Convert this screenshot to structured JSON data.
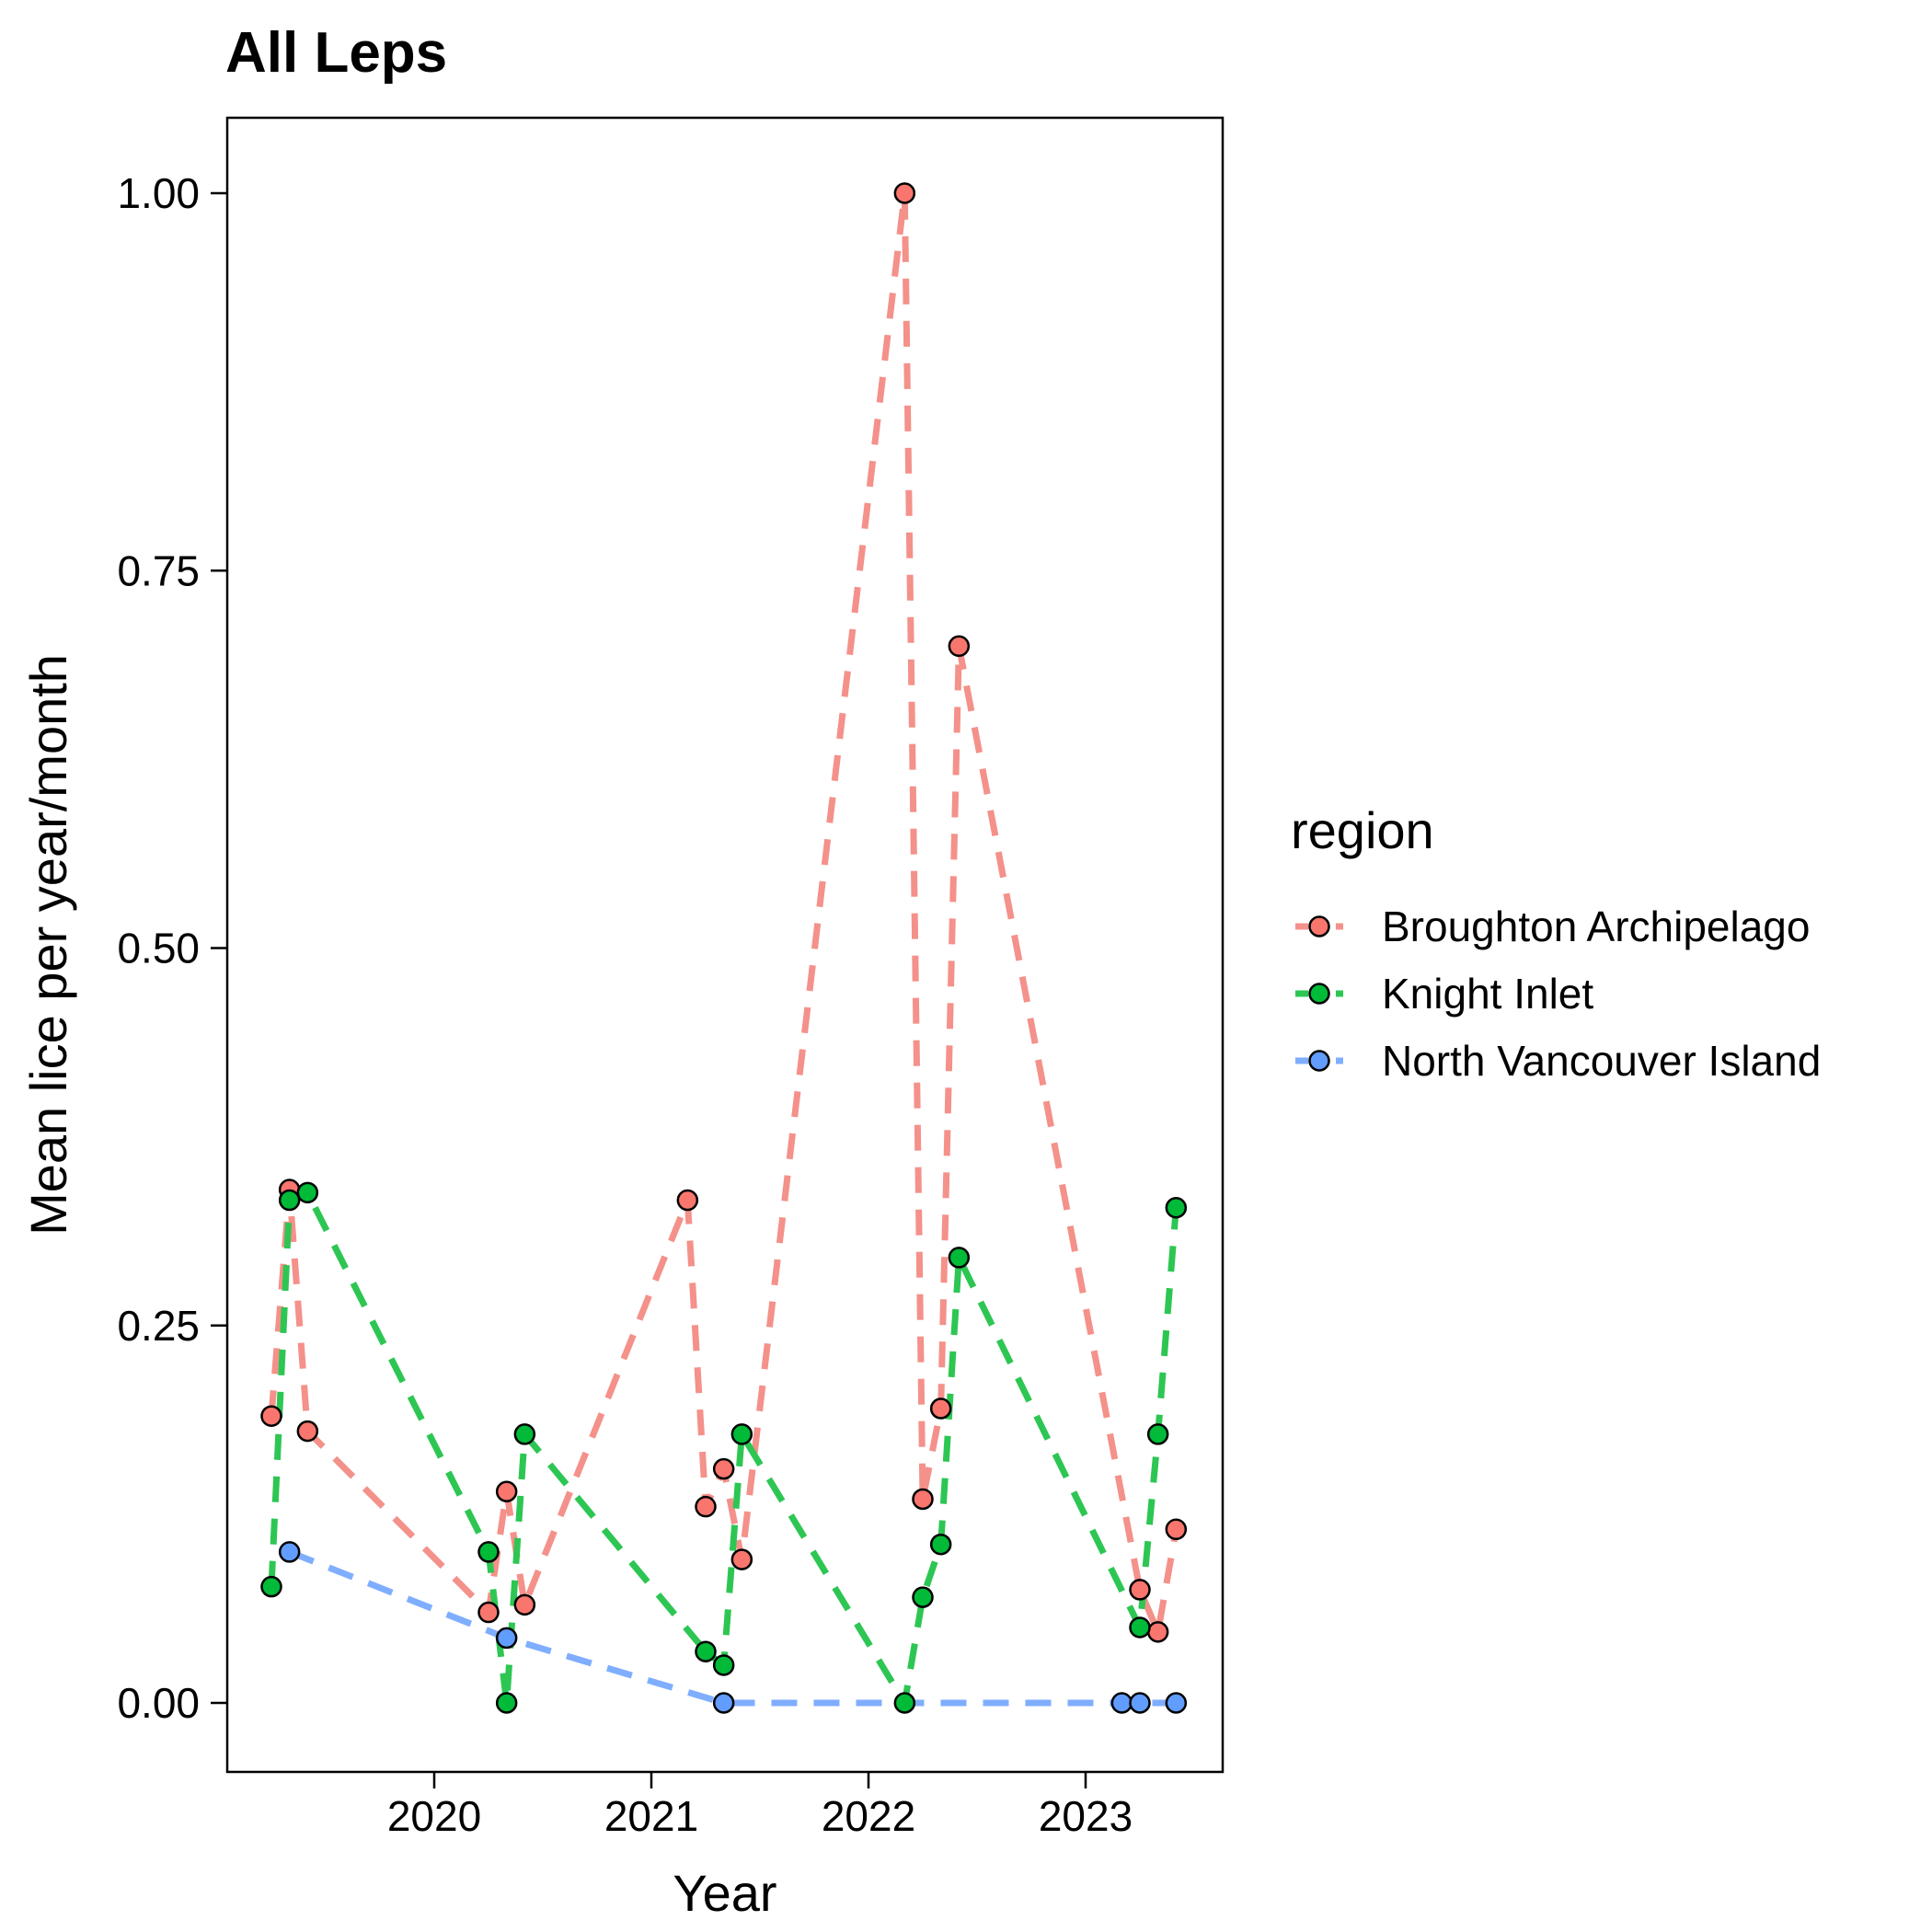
{
  "chart_data": {
    "type": "line",
    "title": "All Leps",
    "xlabel": "Year",
    "ylabel": "Mean lice per year/month",
    "xlim": [
      "2019-03-01",
      "2023-07-01"
    ],
    "ylim": [
      -0.05,
      1.05
    ],
    "x_ticks": [
      "2020",
      "2021",
      "2022",
      "2023"
    ],
    "y_ticks": [
      "0.00",
      "0.25",
      "0.50",
      "0.75",
      "1.00"
    ],
    "grid": false,
    "line_style": "dashed",
    "legend": {
      "title": "region",
      "position": "right"
    },
    "series": [
      {
        "name": "Broughton Archipelago",
        "color": "#F8766D",
        "line_color": "#F4918A",
        "points": [
          {
            "x": "2019-04",
            "y": 0.19
          },
          {
            "x": "2019-05",
            "y": 0.34
          },
          {
            "x": "2019-06",
            "y": 0.18
          },
          {
            "x": "2020-04",
            "y": 0.06
          },
          {
            "x": "2020-05",
            "y": 0.14
          },
          {
            "x": "2020-06",
            "y": 0.065
          },
          {
            "x": "2021-03",
            "y": 0.333
          },
          {
            "x": "2021-04",
            "y": 0.13
          },
          {
            "x": "2021-05",
            "y": 0.155
          },
          {
            "x": "2021-06",
            "y": 0.095
          },
          {
            "x": "2022-03",
            "y": 1.0
          },
          {
            "x": "2022-04",
            "y": 0.135
          },
          {
            "x": "2022-05",
            "y": 0.195
          },
          {
            "x": "2022-06",
            "y": 0.7
          },
          {
            "x": "2023-04",
            "y": 0.075
          },
          {
            "x": "2023-05",
            "y": 0.047
          },
          {
            "x": "2023-06",
            "y": 0.115
          }
        ]
      },
      {
        "name": "Knight Inlet",
        "color": "#00BA38",
        "line_color": "#2DC653",
        "points": [
          {
            "x": "2019-04",
            "y": 0.077
          },
          {
            "x": "2019-05",
            "y": 0.333
          },
          {
            "x": "2019-06",
            "y": 0.338
          },
          {
            "x": "2020-04",
            "y": 0.1
          },
          {
            "x": "2020-05",
            "y": 0.0
          },
          {
            "x": "2020-06",
            "y": 0.178
          },
          {
            "x": "2021-04",
            "y": 0.034
          },
          {
            "x": "2021-05",
            "y": 0.025
          },
          {
            "x": "2021-06",
            "y": 0.178
          },
          {
            "x": "2022-03",
            "y": 0.0
          },
          {
            "x": "2022-04",
            "y": 0.07
          },
          {
            "x": "2022-05",
            "y": 0.105
          },
          {
            "x": "2022-06",
            "y": 0.295
          },
          {
            "x": "2023-04",
            "y": 0.05
          },
          {
            "x": "2023-05",
            "y": 0.178
          },
          {
            "x": "2023-06",
            "y": 0.328
          }
        ]
      },
      {
        "name": "North Vancouver Island",
        "color": "#619CFF",
        "line_color": "#7FAEFF",
        "points": [
          {
            "x": "2019-05",
            "y": 0.1
          },
          {
            "x": "2020-05",
            "y": 0.043
          },
          {
            "x": "2021-05",
            "y": 0.0
          },
          {
            "x": "2023-03",
            "y": 0.0
          },
          {
            "x": "2023-04",
            "y": 0.0
          },
          {
            "x": "2023-06",
            "y": 0.0
          }
        ]
      }
    ]
  }
}
